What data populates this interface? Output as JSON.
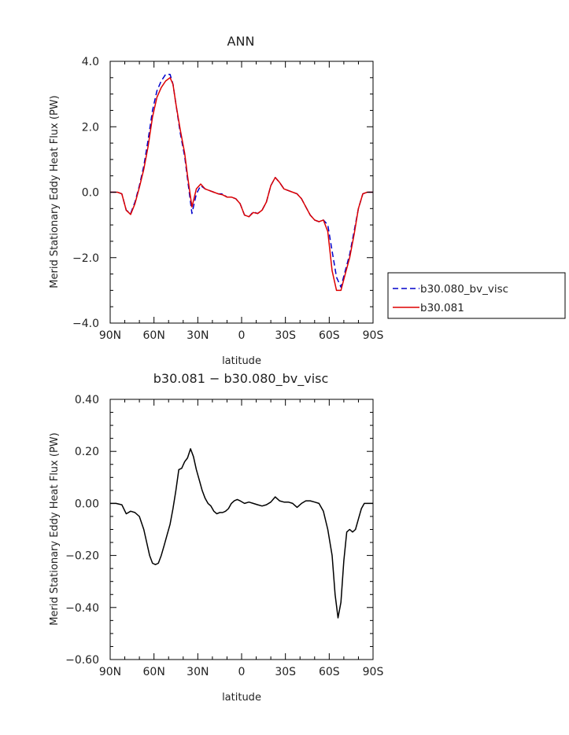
{
  "chart_data": [
    {
      "type": "line",
      "title": "ANN",
      "xlabel": "latitude",
      "ylabel": "Merid Stationary Eddy Heat Flux (PW)",
      "x_ticks": [
        "90N",
        "60N",
        "30N",
        "0",
        "30S",
        "60S",
        "90S"
      ],
      "y_ticks": [
        "4.0",
        "2.0",
        "0.0",
        "−2.0",
        "−4.0"
      ],
      "xlim": [
        90,
        -90
      ],
      "ylim": [
        -4.0,
        4.0
      ],
      "legend_position": "right",
      "series": [
        {
          "name": "b30.080_bv_visc",
          "color": "#0000cc",
          "dash": "dashed",
          "x": [
            90,
            85,
            82,
            79,
            76,
            73,
            70,
            67,
            64,
            61,
            58,
            55,
            52,
            49,
            47,
            45,
            42,
            39,
            37,
            34,
            31,
            28,
            25,
            22,
            19,
            16,
            13,
            10,
            7,
            4,
            1,
            -2,
            -5,
            -8,
            -11,
            -14,
            -17,
            -20,
            -23,
            -26,
            -29,
            -32,
            -35,
            -38,
            -41,
            -44,
            -47,
            -50,
            -53,
            -56,
            -59,
            -62,
            -65,
            -68,
            -71,
            -74,
            -77,
            -80,
            -83,
            -86,
            -88,
            -90
          ],
          "y": [
            0.0,
            0.0,
            -0.05,
            -0.55,
            -0.65,
            -0.3,
            0.2,
            0.8,
            1.6,
            2.5,
            3.1,
            3.4,
            3.6,
            3.6,
            3.3,
            2.7,
            1.8,
            1.1,
            0.4,
            -0.65,
            -0.05,
            0.2,
            0.1,
            0.05,
            0.0,
            -0.05,
            -0.05,
            -0.15,
            -0.15,
            -0.2,
            -0.35,
            -0.7,
            -0.75,
            -0.6,
            -0.65,
            -0.55,
            -0.3,
            0.2,
            0.45,
            0.3,
            0.1,
            0.05,
            0.0,
            -0.05,
            -0.2,
            -0.45,
            -0.7,
            -0.85,
            -0.9,
            -0.85,
            -1.0,
            -1.8,
            -2.6,
            -2.9,
            -2.4,
            -1.9,
            -1.2,
            -0.5,
            -0.05,
            0.0,
            0.0,
            0.0
          ]
        },
        {
          "name": "b30.081",
          "color": "#dd0000",
          "dash": "solid",
          "x": [
            90,
            85,
            82,
            79,
            76,
            73,
            70,
            67,
            64,
            61,
            58,
            55,
            52,
            49,
            47,
            45,
            42,
            39,
            37,
            34,
            31,
            28,
            25,
            22,
            19,
            16,
            13,
            10,
            7,
            4,
            1,
            -2,
            -5,
            -8,
            -11,
            -14,
            -17,
            -20,
            -23,
            -26,
            -29,
            -32,
            -35,
            -38,
            -41,
            -44,
            -47,
            -50,
            -53,
            -56,
            -59,
            -62,
            -65,
            -68,
            -71,
            -74,
            -77,
            -80,
            -83,
            -86,
            -88,
            -90
          ],
          "y": [
            0.0,
            0.0,
            -0.05,
            -0.55,
            -0.68,
            -0.35,
            0.15,
            0.7,
            1.4,
            2.3,
            2.9,
            3.2,
            3.4,
            3.5,
            3.3,
            2.7,
            1.9,
            1.2,
            0.5,
            -0.45,
            0.1,
            0.25,
            0.1,
            0.05,
            0.0,
            -0.05,
            -0.08,
            -0.15,
            -0.15,
            -0.2,
            -0.35,
            -0.7,
            -0.75,
            -0.62,
            -0.65,
            -0.55,
            -0.3,
            0.2,
            0.45,
            0.3,
            0.1,
            0.05,
            0.0,
            -0.05,
            -0.2,
            -0.45,
            -0.7,
            -0.85,
            -0.9,
            -0.85,
            -1.2,
            -2.4,
            -3.0,
            -3.0,
            -2.5,
            -2.0,
            -1.3,
            -0.5,
            -0.05,
            0.0,
            0.0,
            0.0
          ]
        }
      ]
    },
    {
      "type": "line",
      "title": "b30.081 − b30.080_bv_visc",
      "xlabel": "latitude",
      "ylabel": "Merid Stationary Eddy Heat Flux (PW)",
      "x_ticks": [
        "90N",
        "60N",
        "30N",
        "0",
        "30S",
        "60S",
        "90S"
      ],
      "y_ticks": [
        "0.40",
        "0.20",
        "0.00",
        "−0.20",
        "−0.40",
        "−0.60"
      ],
      "xlim": [
        90,
        -90
      ],
      "ylim": [
        -0.6,
        0.4
      ],
      "series": [
        {
          "color": "#000000",
          "dash": "solid",
          "x": [
            90,
            86,
            82,
            79,
            76,
            73,
            70,
            67,
            65,
            63,
            61,
            59,
            57,
            55,
            53,
            51,
            49,
            47,
            45,
            43,
            41,
            39,
            37,
            35,
            33,
            31,
            29,
            27,
            25,
            23,
            21,
            19,
            17,
            15,
            13,
            11,
            9,
            7,
            5,
            3,
            1,
            -2,
            -5,
            -8,
            -11,
            -14,
            -17,
            -20,
            -23,
            -26,
            -29,
            -32,
            -35,
            -38,
            -41,
            -44,
            -47,
            -50,
            -53,
            -56,
            -59,
            -62,
            -64,
            -66,
            -68,
            -70,
            -72,
            -74,
            -76,
            -78,
            -80,
            -82,
            -84,
            -86,
            -88,
            -90
          ],
          "y": [
            0.0,
            0.0,
            -0.005,
            -0.04,
            -0.03,
            -0.035,
            -0.05,
            -0.1,
            -0.15,
            -0.2,
            -0.23,
            -0.235,
            -0.23,
            -0.2,
            -0.16,
            -0.12,
            -0.08,
            -0.02,
            0.05,
            0.13,
            0.135,
            0.16,
            0.175,
            0.21,
            0.18,
            0.13,
            0.09,
            0.05,
            0.02,
            0.0,
            -0.01,
            -0.03,
            -0.04,
            -0.035,
            -0.035,
            -0.03,
            -0.02,
            0.0,
            0.01,
            0.015,
            0.01,
            0.0,
            0.005,
            0.0,
            -0.005,
            -0.01,
            -0.005,
            0.005,
            0.025,
            0.01,
            0.005,
            0.005,
            0.0,
            -0.015,
            0.0,
            0.01,
            0.01,
            0.005,
            0.0,
            -0.03,
            -0.1,
            -0.2,
            -0.35,
            -0.44,
            -0.38,
            -0.22,
            -0.11,
            -0.1,
            -0.11,
            -0.1,
            -0.06,
            -0.02,
            0.0,
            0.0,
            0.0,
            0.0
          ]
        }
      ]
    }
  ]
}
